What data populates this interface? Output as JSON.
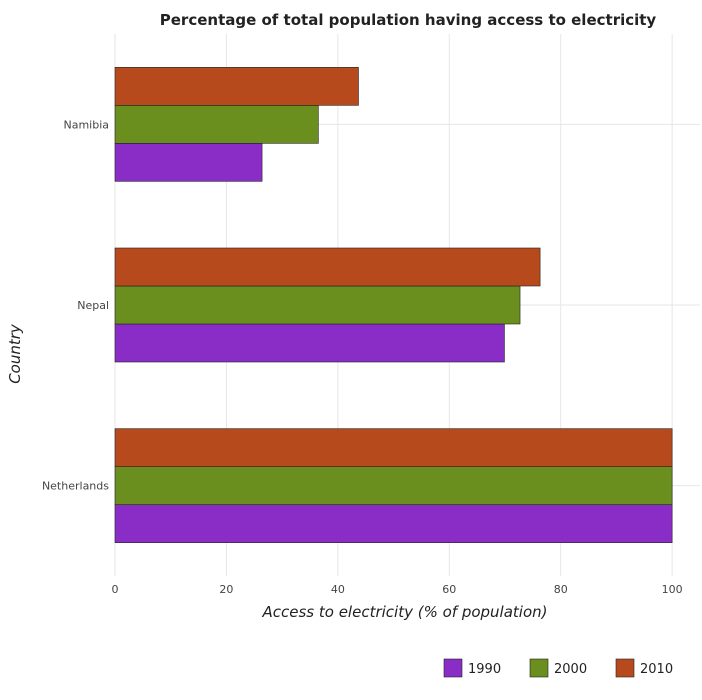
{
  "chart_data": {
    "type": "bar",
    "orientation": "horizontal",
    "title": "Percentage of total population having access to electricity",
    "xlabel": "Access to electricity (% of population)",
    "ylabel": "Country",
    "categories": [
      "Namibia",
      "Nepal",
      "Netherlands"
    ],
    "series": [
      {
        "name": "1990",
        "color": "#8a2dc7",
        "values": [
          26.4,
          69.9,
          100
        ]
      },
      {
        "name": "2000",
        "color": "#6a8f1e",
        "values": [
          36.5,
          72.7,
          100
        ]
      },
      {
        "name": "2010",
        "color": "#b64a1c",
        "values": [
          43.7,
          76.3,
          100
        ]
      }
    ],
    "xlim": [
      0,
      105
    ],
    "xticks": [
      0,
      20,
      40,
      60,
      80,
      100
    ],
    "grid": true,
    "legend_position": "bottom-right"
  }
}
